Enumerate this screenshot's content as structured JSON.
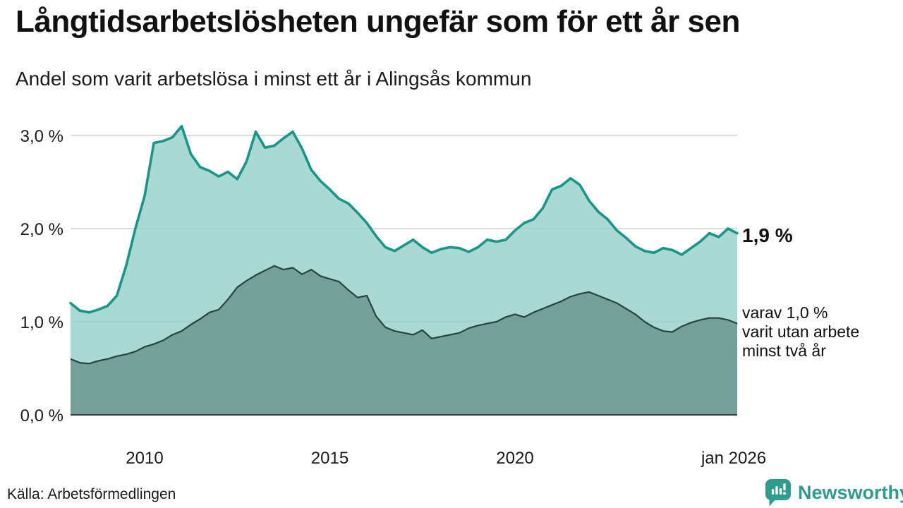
{
  "page": {
    "title": "Långtidsarbetslösheten ungefär som för ett år sen",
    "subtitle": "Andel som varit arbetslösa i minst ett år i Alingsås kommun",
    "source": "Källa: Arbetsförmedlingen",
    "brand": {
      "name": "Newsworthy",
      "color": "#2e9c8f",
      "icon": "speech-bubble-bar-chart-icon"
    }
  },
  "annotations": {
    "latest_value_label": "1,9 %",
    "secondary_label_lines": [
      "varav 1,0 %",
      "varit utan arbete",
      "minst två år"
    ]
  },
  "chart_data": {
    "type": "area",
    "title": "Långtidsarbetslösheten ungefär som för ett år sen",
    "subtitle": "Andel som varit arbetslösa i minst ett år i Alingsås kommun",
    "x_unit": "year, quarterly samples (values estimated from chart)",
    "x_start": 2008.0,
    "x_step": 0.25,
    "x_end": 2026.0,
    "x_tick_labels": [
      "2010",
      "2015",
      "2020",
      "jan 2026"
    ],
    "x_tick_years": [
      2010,
      2015,
      2020,
      2026
    ],
    "y_tick_labels": [
      "0,0 %",
      "1,0 %",
      "2,0 %",
      "3,0 %"
    ],
    "y_tick_values": [
      0,
      1,
      2,
      3
    ],
    "ylim": [
      0,
      3.25
    ],
    "grid": "horizontal",
    "legend": "none (direct labels at right edge of lines)",
    "colors": {
      "gridline": "#cfcfcf",
      "axis_baseline": "#3c3c3c",
      "text": "#1a1a1a"
    },
    "series": [
      {
        "name": "arbetslösa minst ett år",
        "end_value_label": "1,9 %",
        "line_color": "#17978a",
        "fill_color": "rgba(149,206,199,0.8)",
        "values": [
          1.2,
          1.12,
          1.1,
          1.13,
          1.17,
          1.28,
          1.6,
          2.0,
          2.35,
          2.92,
          2.94,
          2.98,
          3.1,
          2.8,
          2.66,
          2.62,
          2.56,
          2.61,
          2.53,
          2.72,
          3.04,
          2.87,
          2.89,
          2.97,
          3.04,
          2.86,
          2.63,
          2.51,
          2.42,
          2.32,
          2.27,
          2.17,
          2.06,
          1.92,
          1.8,
          1.76,
          1.82,
          1.88,
          1.8,
          1.74,
          1.78,
          1.8,
          1.79,
          1.75,
          1.8,
          1.88,
          1.86,
          1.88,
          1.98,
          2.06,
          2.1,
          2.22,
          2.42,
          2.46,
          2.54,
          2.47,
          2.3,
          2.18,
          2.1,
          1.98,
          1.9,
          1.81,
          1.76,
          1.74,
          1.79,
          1.77,
          1.72,
          1.79,
          1.86,
          1.95,
          1.91,
          2.0,
          1.95
        ]
      },
      {
        "name": "varav utan arbete minst två år",
        "end_value_label": "varav 1,0 % varit utan arbete minst två år",
        "line_color": "#254540",
        "fill_color": "rgba(104,146,139,0.8)",
        "values": [
          0.6,
          0.56,
          0.55,
          0.58,
          0.6,
          0.63,
          0.65,
          0.68,
          0.73,
          0.76,
          0.8,
          0.86,
          0.9,
          0.97,
          1.03,
          1.1,
          1.13,
          1.24,
          1.37,
          1.44,
          1.5,
          1.55,
          1.6,
          1.56,
          1.58,
          1.51,
          1.56,
          1.49,
          1.46,
          1.43,
          1.34,
          1.26,
          1.28,
          1.06,
          0.94,
          0.9,
          0.88,
          0.86,
          0.91,
          0.82,
          0.84,
          0.86,
          0.88,
          0.93,
          0.96,
          0.98,
          1.0,
          1.05,
          1.08,
          1.05,
          1.1,
          1.14,
          1.18,
          1.22,
          1.27,
          1.3,
          1.32,
          1.28,
          1.24,
          1.2,
          1.14,
          1.08,
          1.0,
          0.94,
          0.9,
          0.89,
          0.95,
          0.99,
          1.02,
          1.04,
          1.04,
          1.02,
          0.98
        ]
      }
    ]
  }
}
